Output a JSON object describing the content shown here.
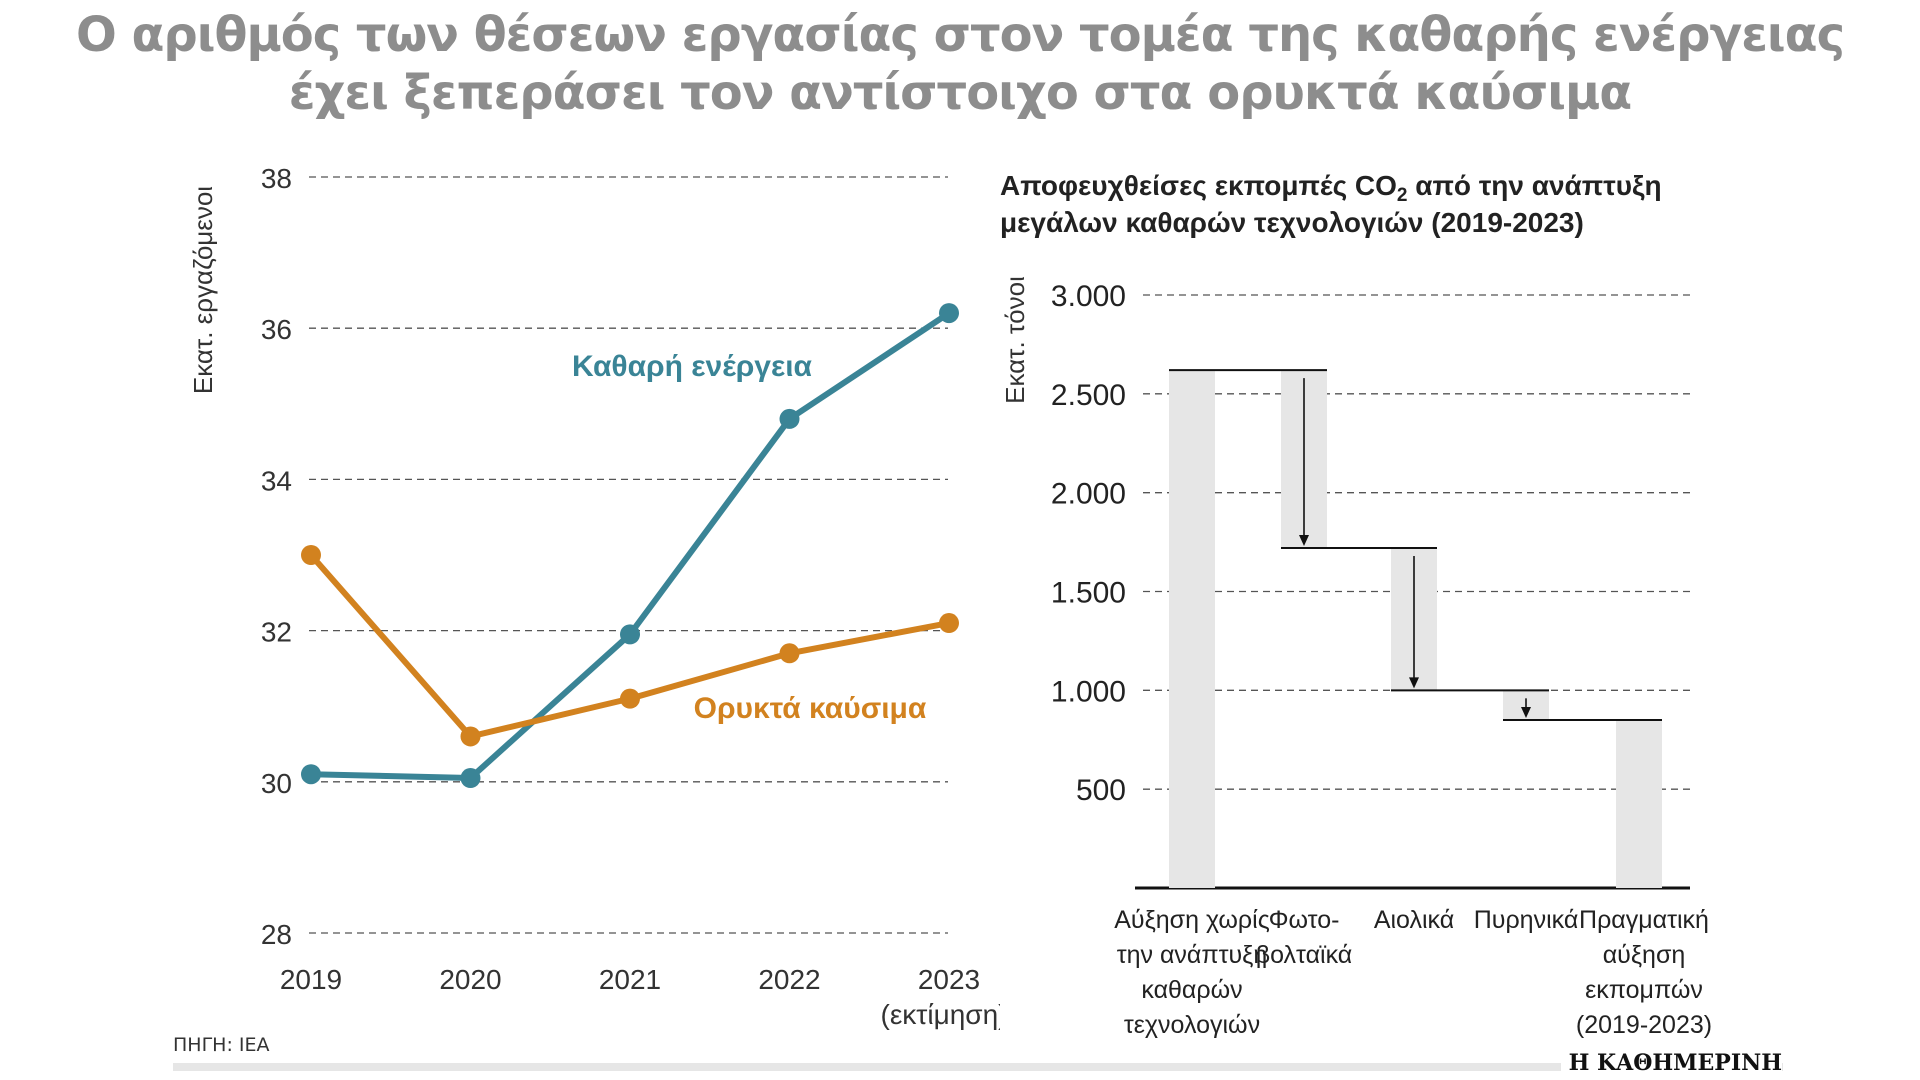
{
  "title": {
    "line1": "Ο αριθμός των θέσεων εργασίας στον τομέα της καθαρής ενέργειας",
    "line2": "έχει ξεπεράσει τον αντίστοιχο στα ορυκτά καύσιμα"
  },
  "source": "ΠΗΓΗ: IEA",
  "brand": "Η ΚΑΘΗΜΕΡΙΝΗ",
  "colors": {
    "clean": "#3a8496",
    "fossil": "#d2821f",
    "bar": "#e6e6e6",
    "title": "#8d8d8d"
  },
  "chart_data": [
    {
      "type": "line",
      "title": "",
      "ylabel": "Εκατ. εργαζόμενοι",
      "xlabel": "",
      "x": [
        "2019",
        "2020",
        "2021",
        "2022",
        "2023"
      ],
      "x_sublabel": "(εκτίμηση)",
      "ylim": [
        28,
        38
      ],
      "yticks": [
        28,
        30,
        32,
        34,
        36,
        38
      ],
      "grid": true,
      "series": [
        {
          "name": "Καθαρή ενέργεια",
          "color": "#3a8496",
          "values": [
            30.1,
            30.05,
            31.95,
            34.8,
            36.2
          ]
        },
        {
          "name": "Ορυκτά καύσιμα",
          "color": "#d2821f",
          "values": [
            33.0,
            30.6,
            31.1,
            31.7,
            32.1
          ]
        }
      ]
    },
    {
      "type": "bar",
      "subtype": "waterfall",
      "title_line1": "Αποφευχθείσες εκπομπές CO",
      "title_sub": "2",
      "title_line1_end": " από την ανάπτυξη",
      "title_line2": "μεγάλων καθαρών τεχνολογιών (2019-2023)",
      "ylabel": "Εκατ. τόνοι",
      "ylim": [
        0,
        3000
      ],
      "yticks": [
        {
          "value": 500,
          "label": "500"
        },
        {
          "value": 1000,
          "label": "1.000"
        },
        {
          "value": 1500,
          "label": "1.500"
        },
        {
          "value": 2000,
          "label": "2.000"
        },
        {
          "value": 2500,
          "label": "2.500"
        },
        {
          "value": 3000,
          "label": "3.000"
        }
      ],
      "grid": true,
      "categories": [
        [
          "Αύξηση χωρίς",
          "την ανάπτυξη",
          "καθαρών",
          "τεχνολογιών"
        ],
        [
          "Φωτο-",
          "βολταϊκά"
        ],
        [
          "Αιολικά"
        ],
        [
          "Πυρηνικά"
        ],
        [
          "Πραγματική",
          "αύξηση",
          "εκπομπών",
          "(2019-2023)"
        ]
      ],
      "bars": [
        {
          "start": 0,
          "end": 2620
        },
        {
          "start": 2620,
          "end": 1720
        },
        {
          "start": 1720,
          "end": 1000
        },
        {
          "start": 1000,
          "end": 850
        },
        {
          "start": 0,
          "end": 850
        }
      ]
    }
  ]
}
